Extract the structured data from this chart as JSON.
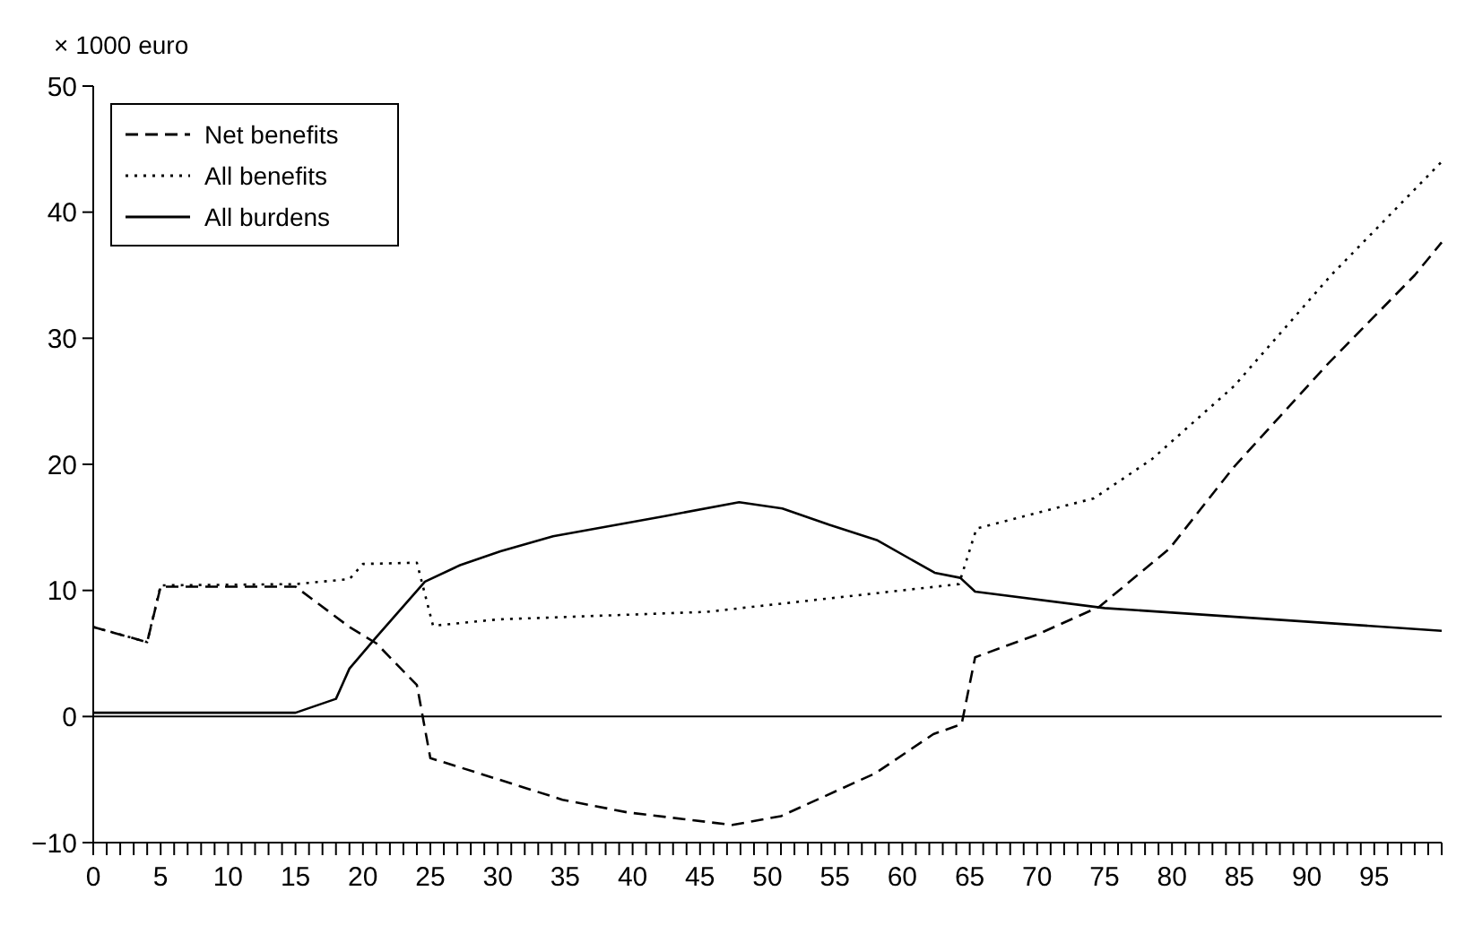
{
  "chart_data": {
    "type": "line",
    "ylabel": "× 1000 euro",
    "xlim": [
      0,
      100
    ],
    "xticks": [
      0,
      {
        "value": 1,
        "label": null
      },
      {
        "value": 2,
        "label": null
      },
      {
        "value": 3,
        "label": null
      },
      {
        "value": 4,
        "label": null
      },
      5,
      {
        "value": 6,
        "label": null
      },
      {
        "value": 7,
        "label": null
      },
      {
        "value": 8,
        "label": null
      },
      {
        "value": 9,
        "label": null
      },
      10,
      {
        "value": 11,
        "label": null
      },
      {
        "value": 12,
        "label": null
      },
      {
        "value": 13,
        "label": null
      },
      {
        "value": 14,
        "label": null
      },
      15,
      {
        "value": 16,
        "label": null
      },
      {
        "value": 17,
        "label": null
      },
      {
        "value": 18,
        "label": null
      },
      {
        "value": 19,
        "label": null
      },
      20,
      {
        "value": 21,
        "label": null
      },
      {
        "value": 22,
        "label": null
      },
      {
        "value": 23,
        "label": null
      },
      {
        "value": 24,
        "label": null
      },
      25,
      {
        "value": 26,
        "label": null
      },
      {
        "value": 27,
        "label": null
      },
      {
        "value": 28,
        "label": null
      },
      {
        "value": 29,
        "label": null
      },
      30,
      {
        "value": 31,
        "label": null
      },
      {
        "value": 32,
        "label": null
      },
      {
        "value": 33,
        "label": null
      },
      {
        "value": 34,
        "label": null
      },
      35,
      {
        "value": 36,
        "label": null
      },
      {
        "value": 37,
        "label": null
      },
      {
        "value": 38,
        "label": null
      },
      {
        "value": 39,
        "label": null
      },
      40,
      {
        "value": 41,
        "label": null
      },
      {
        "value": 42,
        "label": null
      },
      {
        "value": 43,
        "label": null
      },
      {
        "value": 44,
        "label": null
      },
      45,
      {
        "value": 46,
        "label": null
      },
      {
        "value": 47,
        "label": null
      },
      {
        "value": 48,
        "label": null
      },
      {
        "value": 49,
        "label": null
      },
      50,
      {
        "value": 51,
        "label": null
      },
      {
        "value": 52,
        "label": null
      },
      {
        "value": 53,
        "label": null
      },
      {
        "value": 54,
        "label": null
      },
      55,
      {
        "value": 56,
        "label": null
      },
      {
        "value": 57,
        "label": null
      },
      {
        "value": 58,
        "label": null
      },
      {
        "value": 59,
        "label": null
      },
      60,
      {
        "value": 61,
        "label": null
      },
      {
        "value": 62,
        "label": null
      },
      {
        "value": 63,
        "label": null
      },
      {
        "value": 64,
        "label": null
      },
      65,
      {
        "value": 66,
        "label": null
      },
      {
        "value": 67,
        "label": null
      },
      {
        "value": 68,
        "label": null
      },
      {
        "value": 69,
        "label": null
      },
      70,
      {
        "value": 71,
        "label": null
      },
      {
        "value": 72,
        "label": null
      },
      {
        "value": 73,
        "label": null
      },
      {
        "value": 74,
        "label": null
      },
      75,
      {
        "value": 76,
        "label": null
      },
      {
        "value": 77,
        "label": null
      },
      {
        "value": 78,
        "label": null
      },
      {
        "value": 79,
        "label": null
      },
      80,
      {
        "value": 81,
        "label": null
      },
      {
        "value": 82,
        "label": null
      },
      {
        "value": 83,
        "label": null
      },
      {
        "value": 84,
        "label": null
      },
      85,
      {
        "value": 86,
        "label": null
      },
      {
        "value": 87,
        "label": null
      },
      {
        "value": 88,
        "label": null
      },
      {
        "value": 89,
        "label": null
      },
      90,
      {
        "value": 91,
        "label": null
      },
      {
        "value": 92,
        "label": null
      },
      {
        "value": 93,
        "label": null
      },
      {
        "value": 94,
        "label": null
      },
      95,
      {
        "value": 96,
        "label": null
      },
      {
        "value": 97,
        "label": null
      },
      {
        "value": 98,
        "label": null
      },
      {
        "value": 99,
        "label": null
      },
      {
        "value": 100,
        "label": null
      }
    ],
    "ylim": [
      -10,
      50
    ],
    "yticks": [
      {
        "value": -10,
        "label": "−10"
      },
      0,
      10,
      20,
      30,
      40,
      50
    ],
    "grid": false,
    "legend": "top left",
    "ref_lines": [
      {
        "axis": "y",
        "value": 0,
        "color": "#000000",
        "line_style": "solid"
      }
    ],
    "series": [
      {
        "name": "Net benefits",
        "color": "#000000",
        "line_style": "dashed",
        "x": [
          0,
          4,
          5,
          15,
          19,
          21,
          24,
          25,
          28.6,
          34.8,
          39.6,
          47.4,
          51,
          58,
          62.3,
          64.4,
          65.4,
          70,
          74.6,
          79.8,
          84.6,
          91.5,
          98,
          100
        ],
        "values": [
          7.1,
          5.9,
          10.3,
          10.3,
          7.1,
          5.8,
          2.5,
          -3.3,
          -4.5,
          -6.6,
          -7.6,
          -8.6,
          -7.9,
          -4.5,
          -1.4,
          -0.6,
          4.7,
          6.5,
          8.7,
          13.3,
          19.8,
          27.9,
          35,
          37.6
        ]
      },
      {
        "name": "All benefits",
        "color": "#000000",
        "line_style": "dotted",
        "x": [
          0,
          4,
          5,
          15,
          19,
          20,
          24,
          25.2,
          30,
          45.5,
          64.2,
          65.5,
          74.2,
          78.5,
          84.6,
          91.8,
          100
        ],
        "values": [
          7.1,
          5.9,
          10.4,
          10.5,
          10.9,
          12.1,
          12.2,
          7.2,
          7.7,
          8.3,
          10.5,
          14.9,
          17.3,
          20.4,
          26.2,
          35,
          44
        ]
      },
      {
        "name": "All burdens",
        "color": "#000000",
        "line_style": "solid",
        "x": [
          0,
          15,
          18,
          19,
          21,
          24.6,
          27.2,
          30.2,
          34.1,
          42.4,
          47.9,
          51.1,
          54.6,
          58.1,
          62.4,
          64.3,
          65.4,
          75,
          100
        ],
        "values": [
          0.3,
          0.3,
          1.4,
          3.8,
          6.3,
          10.7,
          12,
          13.1,
          14.3,
          15.9,
          17,
          16.5,
          15.2,
          14,
          11.4,
          11,
          9.9,
          8.6,
          6.8
        ]
      }
    ]
  }
}
